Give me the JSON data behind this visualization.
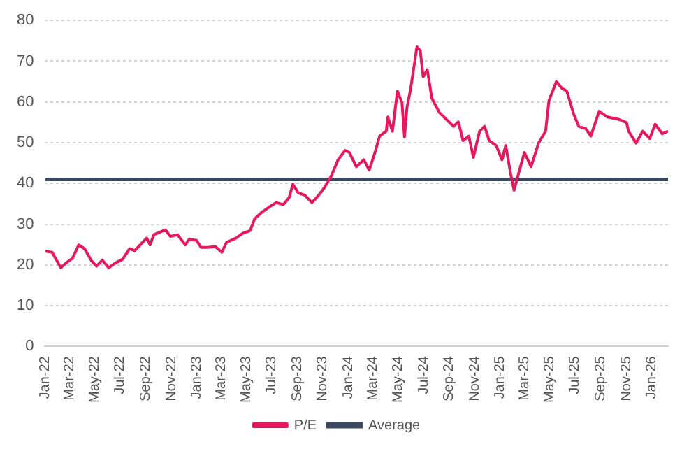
{
  "chart_data": {
    "type": "line",
    "legend": "bottom",
    "grid": "y",
    "marker": "none",
    "line_style": "solid",
    "ylim": [
      0,
      80
    ],
    "yticks": [
      0,
      10,
      20,
      30,
      40,
      50,
      60,
      70,
      80
    ],
    "xlim": [
      "2022-01-01",
      "2026-02-10"
    ],
    "xticks": [
      {
        "value": "2022-01",
        "label": "Jan-22"
      },
      {
        "value": "2022-03",
        "label": "Mar-22"
      },
      {
        "value": "2022-05",
        "label": "May-22"
      },
      {
        "value": "2022-07",
        "label": "Jul-22"
      },
      {
        "value": "2022-09",
        "label": "Sep-22"
      },
      {
        "value": "2022-11",
        "label": "Nov-22"
      },
      {
        "value": "2023-01",
        "label": "Jan-23"
      },
      {
        "value": "2023-03",
        "label": "Mar-23"
      },
      {
        "value": "2023-05",
        "label": "May-23"
      },
      {
        "value": "2023-07",
        "label": "Jul-23"
      },
      {
        "value": "2023-09",
        "label": "Sep-23"
      },
      {
        "value": "2023-11",
        "label": "Nov-23"
      },
      {
        "value": "2024-01",
        "label": "Jan-24"
      },
      {
        "value": "2024-03",
        "label": "Mar-24"
      },
      {
        "value": "2024-05",
        "label": "May-24"
      },
      {
        "value": "2024-07",
        "label": "Jul-24"
      },
      {
        "value": "2024-09",
        "label": "Sep-24"
      },
      {
        "value": "2024-11",
        "label": "Nov-24"
      },
      {
        "value": "2025-01",
        "label": "Jan-25"
      },
      {
        "value": "2025-03",
        "label": "Mar-25"
      },
      {
        "value": "2025-05",
        "label": "May-25"
      },
      {
        "value": "2025-07",
        "label": "Jul-25"
      },
      {
        "value": "2025-09",
        "label": "Sep-25"
      },
      {
        "value": "2025-11",
        "label": "Nov-25"
      },
      {
        "value": "2026-01",
        "label": "Jan-26"
      }
    ],
    "ref_lines": [
      {
        "axis": "y",
        "value": 41,
        "label": "Average",
        "color": "#3b4a5e"
      }
    ],
    "series": [
      {
        "name": "P/E",
        "color": "#e8185e",
        "x": [
          "2022-01-01",
          "2022-01-18",
          "2022-02-08",
          "2022-02-22",
          "2022-03-08",
          "2022-03-23",
          "2022-04-06",
          "2022-04-23",
          "2022-05-05",
          "2022-05-19",
          "2022-06-03",
          "2022-06-20",
          "2022-07-07",
          "2022-07-24",
          "2022-08-05",
          "2022-09-03",
          "2022-09-11",
          "2022-09-20",
          "2022-10-18",
          "2022-10-30",
          "2022-11-16",
          "2022-12-05",
          "2022-12-14",
          "2023-01-01",
          "2023-01-12",
          "2023-01-29",
          "2023-02-15",
          "2023-03-03",
          "2023-03-14",
          "2023-04-06",
          "2023-04-23",
          "2023-05-10",
          "2023-05-21",
          "2023-06-08",
          "2023-06-25",
          "2023-07-12",
          "2023-07-29",
          "2023-08-12",
          "2023-08-21",
          "2023-09-03",
          "2023-09-19",
          "2023-10-06",
          "2023-10-17",
          "2023-11-04",
          "2023-11-21",
          "2023-12-08",
          "2023-12-25",
          "2024-01-04",
          "2024-01-21",
          "2024-02-08",
          "2024-02-21",
          "2024-03-06",
          "2024-03-17",
          "2024-04-02",
          "2024-04-06",
          "2024-04-17",
          "2024-04-29",
          "2024-05-10",
          "2024-05-16",
          "2024-05-22",
          "2024-05-31",
          "2024-06-15",
          "2024-06-23",
          "2024-06-30",
          "2024-07-10",
          "2024-07-21",
          "2024-08-08",
          "2024-08-25",
          "2024-09-11",
          "2024-09-23",
          "2024-10-04",
          "2024-10-18",
          "2024-10-29",
          "2024-11-13",
          "2024-11-25",
          "2024-12-06",
          "2024-12-23",
          "2025-01-06",
          "2025-01-15",
          "2025-01-27",
          "2025-02-04",
          "2025-02-13",
          "2025-03-01",
          "2025-03-17",
          "2025-04-04",
          "2025-04-21",
          "2025-04-29",
          "2025-05-17",
          "2025-05-31",
          "2025-06-11",
          "2025-06-28",
          "2025-07-10",
          "2025-07-27",
          "2025-08-08",
          "2025-08-28",
          "2025-09-17",
          "2025-10-15",
          "2025-11-02",
          "2025-11-07",
          "2025-11-25",
          "2025-12-11",
          "2025-12-28",
          "2026-01-10",
          "2026-01-27",
          "2026-02-10"
        ],
        "values": [
          23.4,
          23.1,
          19.3,
          20.6,
          21.6,
          24.9,
          24,
          21,
          19.7,
          21.2,
          19.3,
          20.5,
          21.4,
          24,
          23.5,
          26.6,
          24.9,
          27.4,
          28.6,
          27,
          27.4,
          24.9,
          26.3,
          26,
          24.3,
          24.3,
          24.5,
          23.1,
          25.5,
          26.6,
          27.8,
          28.4,
          31.3,
          33,
          34.2,
          35.3,
          34.8,
          36.5,
          39.8,
          37.7,
          37.1,
          35.3,
          36.5,
          38.8,
          41.7,
          45.8,
          48.1,
          47.6,
          44.1,
          45.8,
          43.3,
          47.6,
          51.6,
          52.8,
          56.3,
          52.8,
          62.7,
          59.8,
          51.4,
          58.6,
          63.3,
          73.5,
          72.6,
          66.2,
          67.9,
          60.9,
          57.4,
          55.7,
          54,
          55.1,
          50.5,
          51.6,
          46.4,
          52.8,
          54,
          50.5,
          49.3,
          45.8,
          49.3,
          42.3,
          38.3,
          41.7,
          47.6,
          44.1,
          49.9,
          52.8,
          60.3,
          65,
          63.3,
          62.7,
          56.9,
          54,
          53.4,
          51.6,
          57.7,
          56.3,
          55.7,
          54.9,
          52.8,
          49.9,
          52.8,
          51,
          54.5,
          52.2,
          52.8
        ]
      }
    ]
  }
}
